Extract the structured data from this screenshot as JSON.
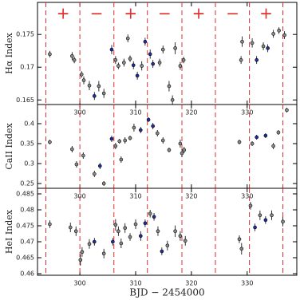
{
  "chart_data": [
    {
      "type": "scatter",
      "ylabel": "Hα Index",
      "xlim": [
        292.4,
        338.9
      ],
      "ylim": [
        0.1643,
        0.1799
      ],
      "xticks": [
        300,
        310,
        320,
        330
      ],
      "yticks": [
        0.165,
        0.17,
        0.175
      ],
      "vlines": [
        293.9,
        300,
        306.1,
        312.1,
        318.3,
        324.3,
        330.4,
        336.4
      ],
      "vline_color": "#e03030",
      "annotations": [
        {
          "text": "+",
          "x": 297
        },
        {
          "text": "−",
          "x": 303
        },
        {
          "text": "+",
          "x": 309.1
        },
        {
          "text": "−",
          "x": 315.2
        },
        {
          "text": "+",
          "x": 321.3
        },
        {
          "text": "−",
          "x": 327.4
        },
        {
          "text": "+",
          "x": 333.4
        }
      ],
      "series": [
        {
          "color": "#8a8a8a",
          "x": [
            294.6,
            298.6,
            299.0,
            300.3,
            300.7,
            301.7,
            303.4,
            304.3,
            306.4,
            306.9,
            307.9,
            308.6,
            309.0,
            311.1,
            314.3,
            314.9,
            316.0,
            316.6,
            317.1,
            318.0,
            318.6,
            328.9,
            329.1,
            330.9,
            332.9,
            334.7,
            335.7,
            336.7
          ],
          "values": [
            0.172,
            0.1717,
            0.1711,
            0.1689,
            0.168,
            0.1672,
            0.1671,
            0.166,
            0.1711,
            0.1702,
            0.1707,
            0.1744,
            0.1713,
            0.1702,
            0.1707,
            0.1727,
            0.1671,
            0.165,
            0.1729,
            0.1702,
            0.1711,
            0.1711,
            0.1739,
            0.1737,
            0.1732,
            0.1751,
            0.1756,
            0.1749
          ],
          "errors": [
            0.0005,
            0.0006,
            0.0005,
            0.0005,
            0.0006,
            0.0007,
            0.0008,
            0.0007,
            0.0006,
            0.0005,
            0.0006,
            0.0006,
            0.0005,
            0.0007,
            0.0006,
            0.0006,
            0.0008,
            0.0007,
            0.0009,
            0.0006,
            0.0005,
            0.0006,
            0.0008,
            0.0007,
            0.0006,
            0.0006,
            0.0005,
            0.0006
          ]
        },
        {
          "color": "#1f2f9f",
          "x": [
            302.6,
            305.7,
            309.6,
            310.3,
            311.7,
            312.6,
            313.1,
            331.7,
            333.7
          ],
          "values": [
            0.1656,
            0.1727,
            0.1703,
            0.1687,
            0.1739,
            0.172,
            0.1705,
            0.1711,
            0.1729
          ],
          "errors": [
            0.0006,
            0.0007,
            0.0006,
            0.0006,
            0.0006,
            0.0007,
            0.0006,
            0.0006,
            0.0006
          ]
        }
      ]
    },
    {
      "type": "scatter",
      "ylabel": "CaII Index",
      "xlim": [
        292.4,
        338.9
      ],
      "ylim": [
        0.238,
        0.448
      ],
      "xticks": [
        300,
        310,
        320,
        330
      ],
      "yticks": [
        0.25,
        0.3,
        0.35,
        0.4
      ],
      "vlines": [
        293.9,
        300,
        306.1,
        312.1,
        318.3,
        324.3,
        330.4,
        336.4
      ],
      "vline_color": "#e03030",
      "series": [
        {
          "color": "#8a8a8a",
          "x": [
            294.6,
            298.6,
            299.4,
            300.6,
            302.6,
            304.3,
            306.4,
            307.1,
            307.4,
            308.1,
            309.0,
            309.7,
            313.9,
            314.9,
            316.0,
            318.0,
            318.3,
            318.7,
            328.6,
            330.9,
            334.7,
            335.6,
            337.1
          ],
          "values": [
            0.354,
            0.336,
            0.298,
            0.32,
            0.274,
            0.25,
            0.344,
            0.356,
            0.31,
            0.358,
            0.364,
            0.39,
            0.376,
            0.358,
            0.334,
            0.35,
            0.326,
            0.334,
            0.354,
            0.35,
            0.344,
            0.378,
            0.434
          ],
          "errors": [
            0.006,
            0.008,
            0.008,
            0.008,
            0.008,
            0.006,
            0.008,
            0.006,
            0.008,
            0.008,
            0.006,
            0.01,
            0.008,
            0.008,
            0.006,
            0.01,
            0.01,
            0.008,
            0.006,
            0.006,
            0.008,
            0.006,
            0.006
          ]
        },
        {
          "color": "#1f2f9f",
          "x": [
            303.6,
            305.7,
            310.9,
            312.3,
            313.1,
            331.7,
            333.3
          ],
          "values": [
            0.294,
            0.362,
            0.384,
            0.41,
            0.394,
            0.366,
            0.37
          ],
          "errors": [
            0.008,
            0.008,
            0.008,
            0.006,
            0.008,
            0.006,
            0.006
          ]
        }
      ]
    },
    {
      "type": "scatter",
      "ylabel": "HeI Index",
      "xlabel": "BJD − 2454000",
      "xlim": [
        292.4,
        338.9
      ],
      "ylim": [
        0.4595,
        0.48675
      ],
      "xticks": [
        300,
        310,
        320,
        330
      ],
      "yticks": [
        0.46,
        0.465,
        0.47,
        0.475,
        0.48,
        0.485
      ],
      "vlines": [
        293.9,
        300,
        306.1,
        312.1,
        318.3,
        324.3,
        330.4,
        336.4
      ],
      "vline_color": "#e03030",
      "series": [
        {
          "color": "#8a8a8a",
          "x": [
            294.6,
            298.3,
            299.3,
            300.1,
            300.4,
            301.7,
            304.3,
            306.4,
            306.9,
            307.4,
            308.1,
            309.0,
            310.0,
            312.6,
            314.0,
            315.7,
            317.1,
            318.0,
            318.9,
            328.6,
            329.0,
            330.6,
            332.3,
            334.4,
            336.4
          ],
          "values": [
            0.4755,
            0.4745,
            0.4733,
            0.4643,
            0.4668,
            0.4693,
            0.4663,
            0.4753,
            0.4733,
            0.4695,
            0.4743,
            0.4715,
            0.4755,
            0.4788,
            0.4733,
            0.4688,
            0.4733,
            0.4718,
            0.4703,
            0.4708,
            0.4678,
            0.4813,
            0.4783,
            0.4783,
            0.4763
          ],
          "errors": [
            0.0012,
            0.0015,
            0.0015,
            0.0018,
            0.0015,
            0.0015,
            0.0015,
            0.0018,
            0.0015,
            0.0015,
            0.0015,
            0.0012,
            0.0015,
            0.0012,
            0.0015,
            0.0015,
            0.0018,
            0.0015,
            0.0015,
            0.0012,
            0.0018,
            0.0012,
            0.0015,
            0.0015,
            0.0015
          ]
        },
        {
          "color": "#1f2f9f",
          "x": [
            302.6,
            305.9,
            310.9,
            311.7,
            313.3,
            314.7,
            331.4,
            333.3
          ],
          "values": [
            0.47,
            0.47,
            0.4718,
            0.4758,
            0.4778,
            0.467,
            0.4745,
            0.4768
          ],
          "errors": [
            0.0012,
            0.0012,
            0.0015,
            0.0012,
            0.0012,
            0.0012,
            0.0012,
            0.0012
          ]
        }
      ]
    }
  ]
}
